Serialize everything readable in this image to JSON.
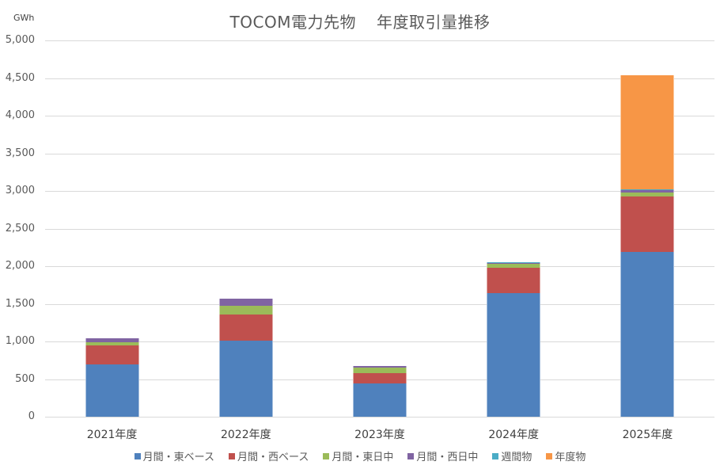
{
  "chart": {
    "title_part1": "TOCOM電力先物",
    "title_part2": "年度取引量推移",
    "unit": "GWh"
  },
  "y_ticks": [
    "5,000",
    "4,500",
    "4,000",
    "3,500",
    "3,000",
    "2,500",
    "2,000",
    "1,500",
    "1,000",
    "500",
    "0"
  ],
  "categories": [
    "2021年度",
    "2022年度",
    "2023年度",
    "2024年度",
    "2025年度"
  ],
  "legend": [
    {
      "label": "月間・東ベース",
      "color": "#4f81bd"
    },
    {
      "label": "月間・西ベース",
      "color": "#c0504d"
    },
    {
      "label": "月間・東日中",
      "color": "#9bbb59"
    },
    {
      "label": "月間・西日中",
      "color": "#8064a2"
    },
    {
      "label": "週間物",
      "color": "#4bacc6"
    },
    {
      "label": "年度物",
      "color": "#f79646"
    }
  ],
  "chart_data": {
    "type": "bar",
    "stacked": true,
    "title": "TOCOM電力先物　年度取引量推移",
    "xlabel": "",
    "ylabel": "GWh",
    "ylim": [
      0,
      5000
    ],
    "grid": true,
    "legend_position": "bottom",
    "categories": [
      "2021年度",
      "2022年度",
      "2023年度",
      "2024年度",
      "2025年度"
    ],
    "series": [
      {
        "name": "月間・東ベース",
        "color": "#4f81bd",
        "values": [
          695,
          1010,
          442,
          1642,
          2189
        ]
      },
      {
        "name": "月間・西ベース",
        "color": "#c0504d",
        "values": [
          253,
          348,
          137,
          337,
          737
        ]
      },
      {
        "name": "月間・東日中",
        "color": "#9bbb59",
        "values": [
          42,
          116,
          74,
          53,
          53
        ]
      },
      {
        "name": "月間・西日中",
        "color": "#8064a2",
        "values": [
          52,
          94,
          16,
          8,
          32
        ]
      },
      {
        "name": "週間物",
        "color": "#4bacc6",
        "values": [
          0,
          0,
          5,
          10,
          10
        ]
      },
      {
        "name": "年度物",
        "color": "#f79646",
        "values": [
          0,
          0,
          0,
          0,
          1516
        ]
      }
    ]
  }
}
